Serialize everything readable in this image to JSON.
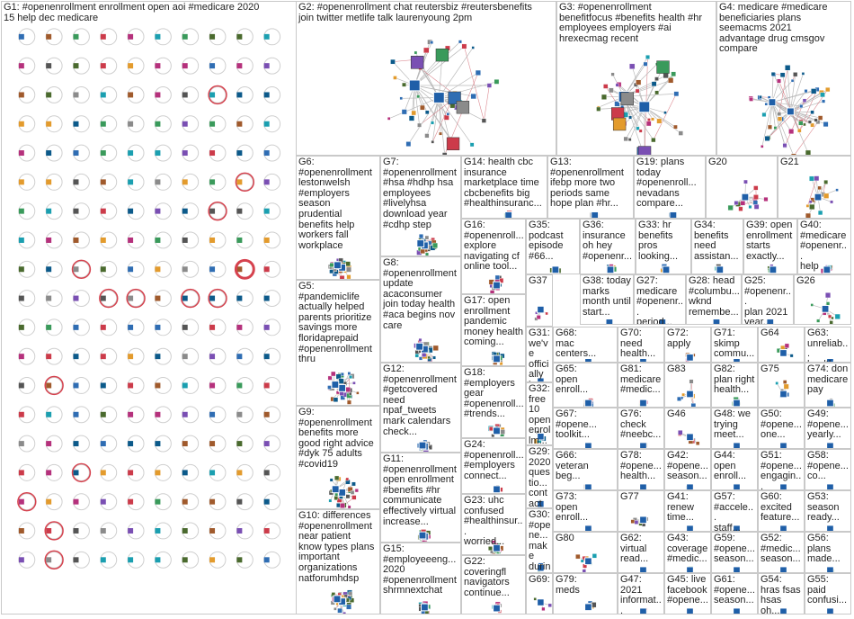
{
  "graph": {
    "groups": [
      {
        "id": "G1",
        "label": "G1: #openenrollment enrollment open aoi #medicare 2020\n15 help dec medicare"
      },
      {
        "id": "G2",
        "label": "G2: #openenrollment chat reutersbiz #reutersbenefits\njoin twitter metlife talk laurenyoung 2pm"
      },
      {
        "id": "G3",
        "label": "G3: #openenrollment\nbenefitfocus #benefits health #hr\nemployees employers #ai\nhrexecmag recent"
      },
      {
        "id": "G4",
        "label": "G4: medicare #medicare\nbeneficiaries plans\nseemacms 2021\nadvantage drug cmsgov\ncompare"
      },
      {
        "id": "G5",
        "label": "G5:\n#pandemiclife\nactually helped\nparents prioritize\nsavings more\nfloridaprepaid\n#openenrollment\nthru"
      },
      {
        "id": "G6",
        "label": "G6:\n#openenrollment\nlestonwelsh\n#employers\nseason\nprudential\nbenefits help\nworkers fall\nworkplace"
      },
      {
        "id": "G7",
        "label": "G7:\n#openenrollment\n#hsa #hdhp hsa\nemployees\n#livelyhsa\ndownload year\n#cdhp step"
      },
      {
        "id": "G8",
        "label": "G8:\n#openenrollment\nupdate\nacaconsumer\njoin today health\n#aca begins nov\ncare"
      },
      {
        "id": "G9",
        "label": "G9:\n#openenrollment\nbenefits more\ngood right advice\n#dyk 75 adults\n#covid19"
      },
      {
        "id": "G10",
        "label": "G10: differences\n#openenrollment\nnear patient\nknow types plans\nimportant\norganizations\nnatforumhdsp"
      },
      {
        "id": "G11",
        "label": "G11:\n#openenrollment\nopen enrollment\n#benefits #hr\ncommunicate\neffectively virtual\nincrease..."
      },
      {
        "id": "G12",
        "label": "G12:\n#openenrollment\n#getcovered\nneed\nnpaf_tweets\nmark calendars\ncheck..."
      },
      {
        "id": "G13",
        "label": "G13:\n#openenrollment\nifebp more two\nperiods same\nhope plan #hr..."
      },
      {
        "id": "G14",
        "label": "G14: health cbc\ninsurance\nmarketplace time\ncbcbenefits big\n#healthinsuranc..."
      },
      {
        "id": "G15",
        "label": "G15:\n#employeeeng...\n2020\n#openenrollment\nshrmnextchat"
      },
      {
        "id": "G16",
        "label": "G16:\n#openenroll...\nexplore\nnavigating cf\nonline tool..."
      },
      {
        "id": "G17",
        "label": "G17: open\nenrollment\npandemic\nmoney health\ncoming..."
      },
      {
        "id": "G18",
        "label": "G18:\n#employers\ngear\n#openenroll...\n#trends..."
      },
      {
        "id": "G19",
        "label": "G19: plans\ntoday\n#openenroll...\nnevadans\ncompare..."
      },
      {
        "id": "G20",
        "label": "G20"
      },
      {
        "id": "G21",
        "label": "G21"
      },
      {
        "id": "G22",
        "label": "G22:\ncoveringfl\nnavigators\ncontinue..."
      },
      {
        "id": "G23",
        "label": "G23: uhc\nconfused\n#healthinsur...\nworried..."
      },
      {
        "id": "G24",
        "label": "G24:\n#openenroll...\n#employers\nconnect..."
      },
      {
        "id": "G25",
        "label": "G25:\n#openenr...\nplan 2021\nyear..."
      },
      {
        "id": "G26",
        "label": "G26"
      },
      {
        "id": "G27",
        "label": "G27:\nmedicare\n#openenr...\nperiod..."
      },
      {
        "id": "G28",
        "label": "G28: head\n#columbu...\nwknd\nremembe..."
      },
      {
        "id": "G29",
        "label": "G29:\n2020\nquestio...\ncontact\nopen..."
      },
      {
        "id": "G30",
        "label": "G30:\n#opene...\nmake\nduring re\nchange..."
      },
      {
        "id": "G31",
        "label": "G31:\nwe've\nofficially\nlaunched\nvirtual..."
      },
      {
        "id": "G32",
        "label": "G32:\nfree 10\nopen\nenrollm..."
      },
      {
        "id": "G33",
        "label": "G33: hr\nbenefits\npros\nlooking..."
      },
      {
        "id": "G34",
        "label": "G34:\nbenefits\nneed\nassistan..."
      },
      {
        "id": "G35",
        "label": "G35:\npodcast\nepisode\n#66..."
      },
      {
        "id": "G36",
        "label": "G36:\ninsurance\noh hey\n#openenr..."
      },
      {
        "id": "G37",
        "label": "G37"
      },
      {
        "id": "G38",
        "label": "G38: today\nmarks\nmonth until\nstart..."
      },
      {
        "id": "G39",
        "label": "G39: open\nenrollment\nstarts\nexactly..."
      },
      {
        "id": "G40",
        "label": "G40:\n#medicare\n#openenr...\nhelp"
      },
      {
        "id": "G41",
        "label": "G41:\nrenew\ntime..."
      },
      {
        "id": "G42",
        "label": "G42:\n#opene...\nseason..."
      },
      {
        "id": "G43",
        "label": "G43:\ncoverage\n#medic..."
      },
      {
        "id": "G44",
        "label": "G44:\nopen\nenroll..."
      },
      {
        "id": "G45",
        "label": "G45: live\nfacebook\n#opene..."
      },
      {
        "id": "G46",
        "label": "G46"
      },
      {
        "id": "G47",
        "label": "G47:\n2021\ninformat..."
      },
      {
        "id": "G48",
        "label": "G48: we\ntrying\nmeet..."
      },
      {
        "id": "G49",
        "label": "G49:\n#opene...\nyearly..."
      },
      {
        "id": "G50",
        "label": "G50:\n#opene...\none..."
      },
      {
        "id": "G51",
        "label": "G51:\n#opene...\nengagin..."
      },
      {
        "id": "G52",
        "label": "G52:\n#medic...\nseason..."
      },
      {
        "id": "G53",
        "label": "G53:\nseason\nready..."
      },
      {
        "id": "G54",
        "label": "G54:\nhras fsas\nhsas oh..."
      },
      {
        "id": "G55",
        "label": "G55:\npaid\nconfusi..."
      },
      {
        "id": "G56",
        "label": "G56:\nplans\nmade..."
      },
      {
        "id": "G57",
        "label": "G57:\n#accele...\nstaff..."
      },
      {
        "id": "G58",
        "label": "G58:\n#opene...\nco..."
      },
      {
        "id": "G59",
        "label": "G59:\n#opene...\nseason..."
      },
      {
        "id": "G60",
        "label": "G60:\nexcited\nfeature..."
      },
      {
        "id": "G61",
        "label": "G61:\n#opene...\nseason..."
      },
      {
        "id": "G62",
        "label": "G62:\nvirtual\nread..."
      },
      {
        "id": "G63",
        "label": "G63:\nunreliab...\nhealth..."
      },
      {
        "id": "G64",
        "label": "G64"
      },
      {
        "id": "G65",
        "label": "G65:\nopen\nenroll..."
      },
      {
        "id": "G66",
        "label": "G66:\nveteran\nbeg..."
      },
      {
        "id": "G67",
        "label": "G67:\n#opene...\ntoolkit..."
      },
      {
        "id": "G68",
        "label": "G68:\nmac\ncenters..."
      },
      {
        "id": "G69",
        "label": "G69:"
      },
      {
        "id": "G70",
        "label": "G70:\nneed\nhealth..."
      },
      {
        "id": "G71",
        "label": "G71:\nskimp\ncommu..."
      },
      {
        "id": "G72",
        "label": "G72:\napply"
      },
      {
        "id": "G73",
        "label": "G73:\nopen\nenroll..."
      },
      {
        "id": "G74",
        "label": "G74: don\nmedicare\npay"
      },
      {
        "id": "G75",
        "label": "G75"
      },
      {
        "id": "G76",
        "label": "G76:\ncheck\n#neebc..."
      },
      {
        "id": "G77",
        "label": "G77"
      },
      {
        "id": "G78",
        "label": "G78:\n#opene...\nhealth..."
      },
      {
        "id": "G79",
        "label": "G79:\nmeds"
      },
      {
        "id": "G80",
        "label": "G80"
      },
      {
        "id": "G81",
        "label": "G81:\nmedicare\n#medic..."
      },
      {
        "id": "G82",
        "label": "G82:\nplan right\nhealth..."
      },
      {
        "id": "G83",
        "label": "G83"
      }
    ]
  }
}
